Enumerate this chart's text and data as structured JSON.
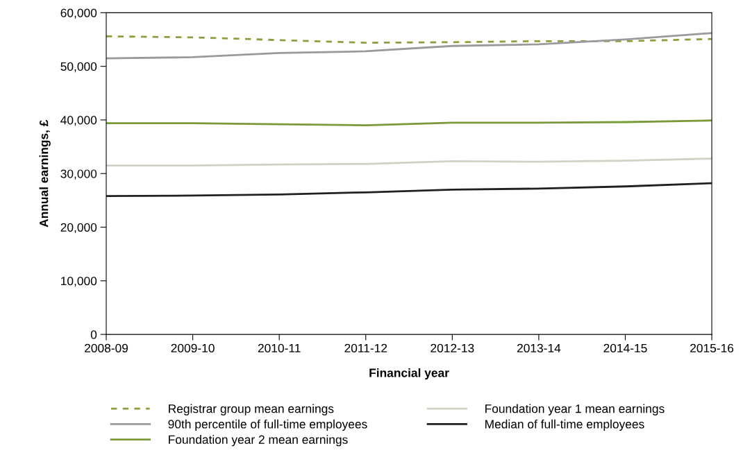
{
  "chart_data": {
    "type": "line",
    "xlabel": "Financial year",
    "ylabel": "Annual earnings, £",
    "categories": [
      "2008-09",
      "2009-10",
      "2010-11",
      "2011-12",
      "2012-13",
      "2013-14",
      "2014-15",
      "2015-16"
    ],
    "series": [
      {
        "name": "Registrar group mean earnings",
        "color": "#8aa03c",
        "line_style": "dashed",
        "values": [
          55600,
          55400,
          54900,
          54400,
          54500,
          54700,
          54700,
          55100
        ]
      },
      {
        "name": "90th percentile of full-time employees",
        "color": "#9a9a9e",
        "values": [
          51500,
          51700,
          52500,
          52800,
          53800,
          54100,
          55000,
          56200
        ]
      },
      {
        "name": "Foundation year 2 mean earnings",
        "color": "#7a9a3a",
        "values": [
          39400,
          39400,
          39200,
          39000,
          39500,
          39500,
          39600,
          39900
        ]
      },
      {
        "name": "Foundation year 1 mean earnings",
        "color": "#cfd3c4",
        "values": [
          31500,
          31500,
          31700,
          31800,
          32300,
          32200,
          32400,
          32800
        ]
      },
      {
        "name": "Median of full-time employees",
        "color": "#231f20",
        "values": [
          25800,
          25900,
          26100,
          26500,
          27000,
          27200,
          27600,
          28200
        ]
      }
    ],
    "ylim": [
      0,
      60000
    ],
    "yticks": [
      0,
      {
        "value": 10000,
        "label": "10,000"
      },
      {
        "value": 20000,
        "label": "20,000"
      },
      {
        "value": 30000,
        "label": "30,000"
      },
      {
        "value": 40000,
        "label": "40,000"
      },
      {
        "value": 50000,
        "label": "50,000"
      },
      {
        "value": 60000,
        "label": "60,000"
      }
    ],
    "grid": false,
    "legend": "bottom",
    "marker": "none",
    "line_style": "solid"
  }
}
